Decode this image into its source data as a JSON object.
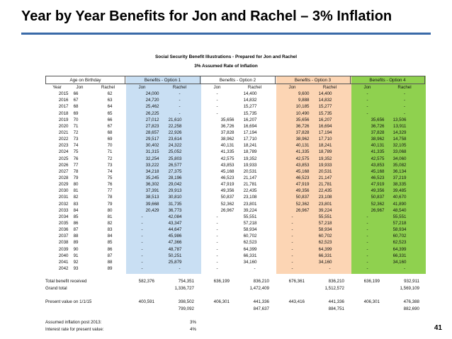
{
  "title": "Year by Year Benefits for Jon and Rachel – 3% Inflation",
  "subtitle": "Social Security Benefit Illustrations - Prepared for Jon and Rachel",
  "subtitle2": "3% Assumed Rate of Inflation",
  "group_headers": [
    "Age on Birthday",
    "Benefits - Option 1",
    "Benefits - Option 2",
    "Benefits - Option 3",
    "Benefits - Option 4"
  ],
  "column_headers": [
    "Year",
    "Jon",
    "Rachel",
    "Jon",
    "Rachel",
    "Jon",
    "Rachel",
    "Jon",
    "Rachel",
    "Jon",
    "Rachel"
  ],
  "rows": [
    [
      "2015",
      "66",
      "62",
      "24,000",
      "-",
      "-",
      "14,400",
      "9,600",
      "14,400",
      "-",
      "-"
    ],
    [
      "2016",
      "67",
      "63",
      "24,720",
      "-",
      "-",
      "14,832",
      "9,888",
      "14,832",
      "-",
      "-"
    ],
    [
      "2017",
      "68",
      "64",
      "25,462",
      "-",
      "-",
      "15,277",
      "10,185",
      "15,277",
      "-",
      "-"
    ],
    [
      "2018",
      "69",
      "65",
      "26,225",
      "-",
      "-",
      "15,735",
      "10,490",
      "15,735",
      "-",
      "-"
    ],
    [
      "2019",
      "70",
      "66",
      "27,012",
      "21,610",
      "35,656",
      "16,207",
      "35,656",
      "16,207",
      "35,656",
      "13,506"
    ],
    [
      "2020",
      "71",
      "67",
      "27,823",
      "22,258",
      "36,726",
      "16,694",
      "36,726",
      "16,694",
      "36,726",
      "13,911"
    ],
    [
      "2021",
      "72",
      "68",
      "28,657",
      "22,926",
      "37,828",
      "17,194",
      "37,828",
      "17,194",
      "37,828",
      "14,329"
    ],
    [
      "2022",
      "73",
      "69",
      "29,517",
      "23,614",
      "38,962",
      "17,710",
      "38,962",
      "17,710",
      "38,962",
      "14,758"
    ],
    [
      "2023",
      "74",
      "70",
      "30,402",
      "24,322",
      "40,131",
      "18,241",
      "40,131",
      "18,241",
      "40,131",
      "32,105"
    ],
    [
      "2024",
      "75",
      "71",
      "31,315",
      "25,052",
      "41,335",
      "18,789",
      "41,335",
      "18,789",
      "41,335",
      "33,068"
    ],
    [
      "2025",
      "76",
      "72",
      "32,254",
      "25,803",
      "42,575",
      "19,352",
      "42,575",
      "19,352",
      "42,575",
      "34,060"
    ],
    [
      "2026",
      "77",
      "73",
      "33,222",
      "26,577",
      "43,853",
      "19,933",
      "43,853",
      "19,933",
      "43,853",
      "35,082"
    ],
    [
      "2027",
      "78",
      "74",
      "34,218",
      "27,375",
      "45,168",
      "20,531",
      "45,168",
      "20,531",
      "45,168",
      "36,134"
    ],
    [
      "2028",
      "79",
      "75",
      "35,245",
      "28,196",
      "46,523",
      "21,147",
      "46,523",
      "21,147",
      "46,523",
      "37,219"
    ],
    [
      "2029",
      "80",
      "76",
      "36,302",
      "29,042",
      "47,919",
      "21,781",
      "47,919",
      "21,781",
      "47,919",
      "38,335"
    ],
    [
      "2030",
      "81",
      "77",
      "37,391",
      "29,913",
      "49,356",
      "22,435",
      "49,356",
      "22,435",
      "49,356",
      "39,485"
    ],
    [
      "2031",
      "82",
      "78",
      "38,513",
      "30,810",
      "50,837",
      "23,108",
      "50,837",
      "23,108",
      "50,837",
      "40,670"
    ],
    [
      "2032",
      "83",
      "79",
      "39,668",
      "31,735",
      "52,362",
      "23,801",
      "52,362",
      "23,801",
      "52,362",
      "41,890"
    ],
    [
      "2033",
      "84",
      "80",
      "20,429",
      "36,773",
      "26,967",
      "39,224",
      "26,967",
      "39,224",
      "26,967",
      "48,540"
    ],
    [
      "2034",
      "85",
      "81",
      "-",
      "42,084",
      "-",
      "55,551",
      "-",
      "55,551",
      "-",
      "55,551"
    ],
    [
      "2035",
      "86",
      "82",
      "-",
      "43,347",
      "-",
      "57,218",
      "-",
      "57,218",
      "-",
      "57,218"
    ],
    [
      "2036",
      "87",
      "83",
      "-",
      "44,647",
      "-",
      "58,934",
      "-",
      "58,934",
      "-",
      "58,934"
    ],
    [
      "2037",
      "88",
      "84",
      "-",
      "45,986",
      "-",
      "60,702",
      "-",
      "60,702",
      "-",
      "60,702"
    ],
    [
      "2038",
      "89",
      "85",
      "-",
      "47,366",
      "-",
      "62,523",
      "-",
      "62,523",
      "-",
      "62,523"
    ],
    [
      "2039",
      "90",
      "86",
      "-",
      "48,787",
      "-",
      "64,399",
      "-",
      "64,399",
      "-",
      "64,399"
    ],
    [
      "2040",
      "91",
      "87",
      "-",
      "50,251",
      "-",
      "66,331",
      "-",
      "66,331",
      "-",
      "66,331"
    ],
    [
      "2041",
      "92",
      "88",
      "-",
      "25,879",
      "-",
      "34,160",
      "-",
      "34,160",
      "-",
      "34,160"
    ],
    [
      "2042",
      "93",
      "89",
      "-",
      "-",
      "-",
      "-",
      "-",
      "-",
      "-",
      "-"
    ]
  ],
  "totals": {
    "total_label": "Total benefit received",
    "total_values": [
      "582,376",
      "754,351",
      "636,199",
      "836,210",
      "676,361",
      "836,210",
      "636,199",
      "932,911"
    ],
    "grand_label": "Grand total",
    "grand_values": [
      "1,336,727",
      "1,472,409",
      "1,512,572",
      "1,569,109"
    ],
    "pv_label": "Present value on 1/1/15",
    "pv_values": [
      "400,591",
      "398,502",
      "406,301",
      "441,336",
      "443,416",
      "441,336",
      "406,301",
      "476,388"
    ],
    "pv_sum_values": [
      "799,092",
      "847,637",
      "884,751",
      "882,690"
    ]
  },
  "footnotes": {
    "inflation_label": "Assumed inflation post 2013:",
    "inflation_value": "3%",
    "interest_label": "Interest rate for present value:",
    "interest_value": "4%"
  },
  "page_number": "41",
  "colors": {
    "title_rule": "#3a6aa8",
    "option1": "#c9dff3",
    "option3": "#fcd5b4",
    "option4": "#8fd14f"
  }
}
